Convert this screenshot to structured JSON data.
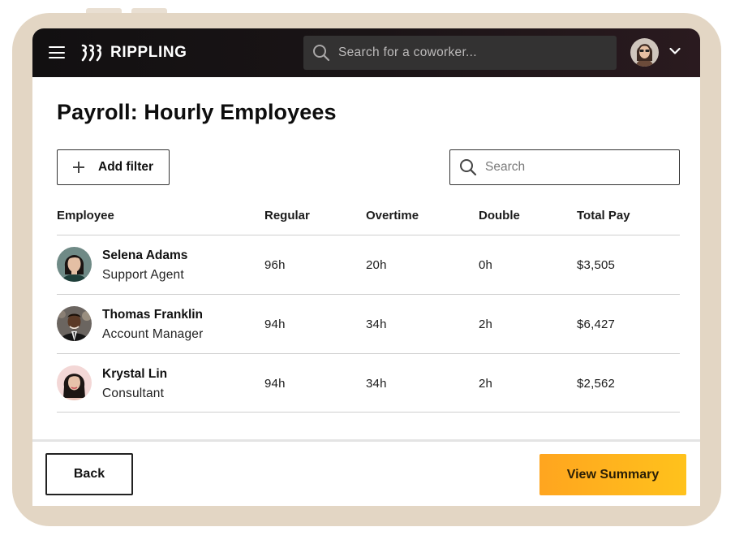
{
  "app": {
    "brand": "RIPPLING"
  },
  "topbar": {
    "search_placeholder": "Search for a coworker...",
    "menu_icon": "hamburger-icon",
    "search_icon": "search-icon",
    "chevron_icon": "chevron-down-icon"
  },
  "page": {
    "title": "Payroll: Hourly Employees"
  },
  "toolbar": {
    "add_filter_label": "Add filter",
    "search_placeholder": "Search"
  },
  "table": {
    "headers": [
      "Employee",
      "Regular",
      "Overtime",
      "Double",
      "Total Pay"
    ],
    "rows": [
      {
        "name": "Selena Adams",
        "role": "Support Agent",
        "regular": "96h",
        "overtime": "20h",
        "double": "0h",
        "total": "$3,505"
      },
      {
        "name": "Thomas Franklin",
        "role": "Account Manager",
        "regular": "94h",
        "overtime": "34h",
        "double": "2h",
        "total": "$6,427"
      },
      {
        "name": "Krystal Lin",
        "role": "Consultant",
        "regular": "94h",
        "overtime": "34h",
        "double": "2h",
        "total": "$2,562"
      }
    ]
  },
  "footer": {
    "back_label": "Back",
    "summary_label": "View Summary"
  },
  "colors": {
    "topbar": "#121011",
    "primary_button": "#ffb31e",
    "frame": "#e3d6c4"
  }
}
